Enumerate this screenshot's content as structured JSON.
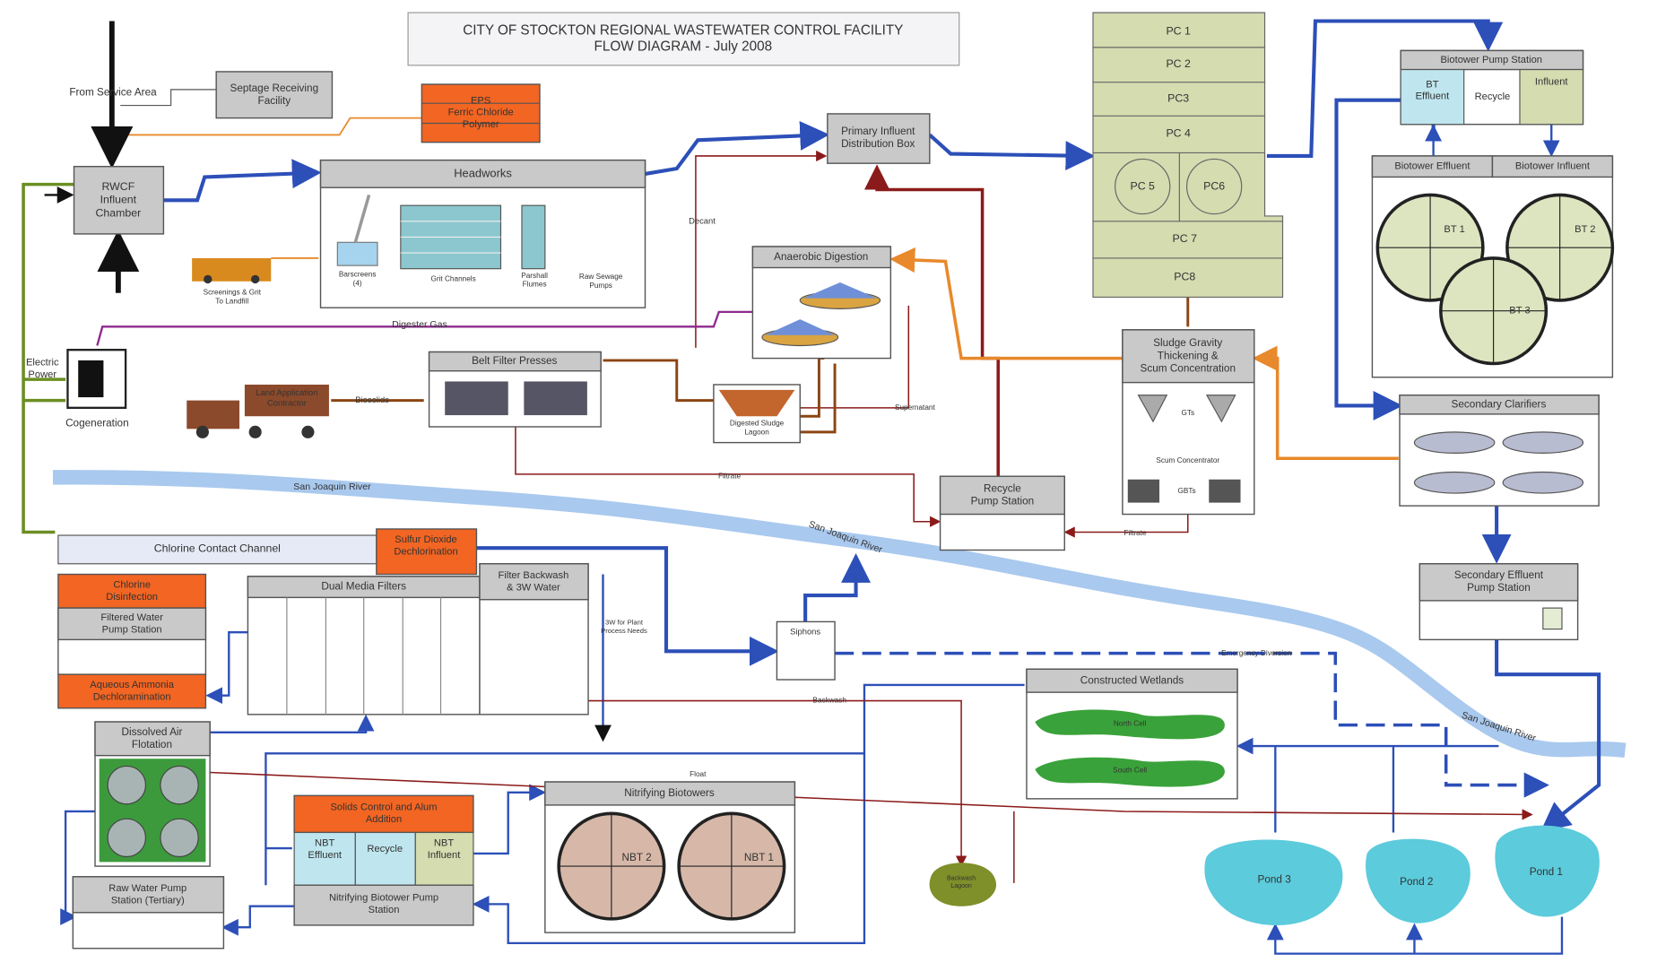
{
  "title": [
    "CITY OF STOCKTON REGIONAL WASTEWATER CONTROL FACILITY",
    "FLOW DIAGRAM - July 2008"
  ],
  "labels": {
    "from_service": "From Service Area",
    "septage": [
      "Septage Receiving",
      "Facility"
    ],
    "eps": [
      "EPS",
      "Ferric Chloride",
      "Polymer"
    ],
    "rwcf": [
      "RWCF",
      "Influent",
      "Chamber"
    ],
    "headworks": "Headworks",
    "barscreens": [
      "Barscreens",
      "(4)"
    ],
    "grit": "Grit Channels",
    "parshall": [
      "Parshall",
      "Flumes"
    ],
    "raw_pumps": [
      "Raw Sewage",
      "Pumps"
    ],
    "screenings": [
      "Screenings & Grit",
      "To Landfill"
    ],
    "pidb": [
      "Primary Influent",
      "Distribution Box"
    ],
    "pc": [
      "PC 1",
      "PC 2",
      "PC3",
      "PC 4",
      "PC 5",
      "PC6",
      "PC 7",
      "PC8"
    ],
    "btps": "Biotower Pump Station",
    "bt_effluent": [
      "BT",
      "Effluent"
    ],
    "recycle": "Recycle",
    "influent": "Influent",
    "bt_eff_hdr": "Biotower Effluent",
    "bt_inf_hdr": "Biotower Influent",
    "bt": [
      "BT 1",
      "BT 2",
      "BT 3"
    ],
    "anaerobic": "Anaerobic Digestion",
    "decant": "Decant",
    "digester_gas": "Digester Gas",
    "electric": [
      "Electric",
      "Power"
    ],
    "cogeneration": "Cogeneration",
    "belt": "Belt Filter Presses",
    "land": [
      "Land Application",
      "Contractor"
    ],
    "biosolids": "Biosolids",
    "lagoon": [
      "Digested Sludge",
      "Lagoon"
    ],
    "supernatant": "Supernatant",
    "sgt": [
      "Sludge Gravity",
      "Thickening &",
      "Scum Concentration"
    ],
    "gts": "GTs",
    "scum": "Scum Concentrator",
    "gbts": "GBTs",
    "sec_clar": "Secondary Clarifiers",
    "river": [
      "San Joaquin River",
      "San Joaquin River",
      "San Joaquin River"
    ],
    "filtrate": [
      "Filtrate",
      "Filtrate"
    ],
    "rps": [
      "Recycle",
      "Pump Station"
    ],
    "ccc": "Chlorine Contact Channel",
    "so2": [
      "Sulfur Dioxide",
      "Dechlorination"
    ],
    "cl_dis": [
      "Chlorine",
      "Disinfection"
    ],
    "fwps": [
      "Filtered Water",
      "Pump Station"
    ],
    "ammonia": [
      "Aqueous Ammonia",
      "Dechloramination"
    ],
    "dmf": "Dual Media Filters",
    "fbw": [
      "Filter Backwash",
      "& 3W Water"
    ],
    "w3": [
      "3W for Plant",
      "Process Needs"
    ],
    "siphons": "Siphons",
    "emergency": "Emergency Diversion",
    "seps": [
      "Secondary Effluent",
      "Pump Station"
    ],
    "wetlands": "Constructed Wetlands",
    "north": "North Cell",
    "south": "South Cell",
    "backwash": "Backwash",
    "daf": [
      "Dissolved Air",
      "Flotation"
    ],
    "float": "Float",
    "nbt_hdr": "Nitrifying Biotowers",
    "nbt": [
      "NBT 2",
      "NBT 1"
    ],
    "solids": [
      "Solids Control and Alum",
      "Addition"
    ],
    "nbt_eff": [
      "NBT",
      "Effluent"
    ],
    "nbt_recycle": "Recycle",
    "nbt_inf": [
      "NBT",
      "Influent"
    ],
    "nbtps": [
      "Nitrifying Biotower Pump",
      "Station"
    ],
    "rwps": [
      "Raw Water Pump",
      "Station (Tertiary)"
    ],
    "bw_lagoon": [
      "Backwash",
      "Lagoon"
    ],
    "ponds": [
      "Pond 3",
      "Pond 2",
      "Pond 1"
    ]
  }
}
